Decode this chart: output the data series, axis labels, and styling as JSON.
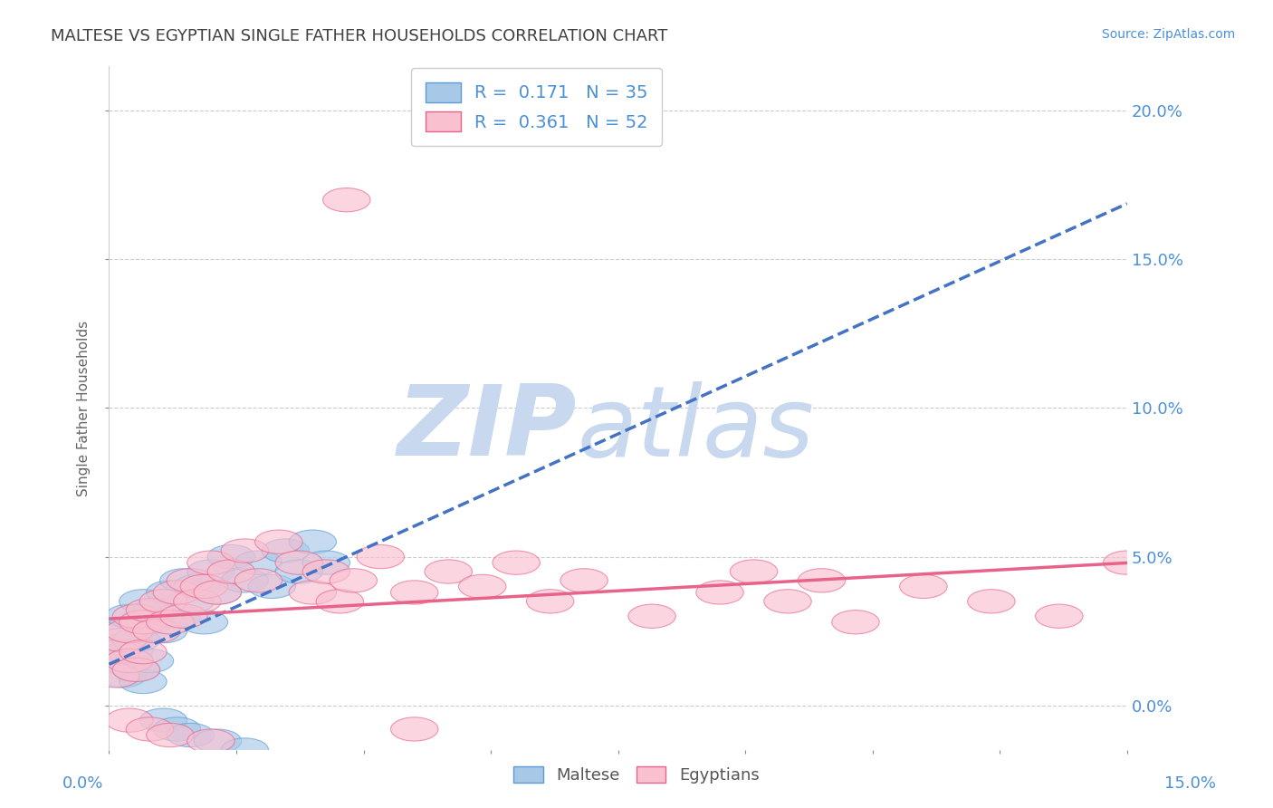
{
  "title": "MALTESE VS EGYPTIAN SINGLE FATHER HOUSEHOLDS CORRELATION CHART",
  "source_text": "Source: ZipAtlas.com",
  "ylabel": "Single Father Households",
  "ytick_values": [
    0.0,
    0.05,
    0.1,
    0.15,
    0.2
  ],
  "xlim": [
    0.0,
    0.15
  ],
  "ylim": [
    -0.015,
    0.215
  ],
  "legend_entries": [
    {
      "label": "R =  0.171   N = 35",
      "color": "#5b9bd5"
    },
    {
      "label": "R =  0.361   N = 52",
      "color": "#e8638a"
    }
  ],
  "maltese_color": "#a8c8e8",
  "maltese_edge_color": "#5b9bd5",
  "egyptian_color": "#f9c0d0",
  "egyptian_edge_color": "#e8638a",
  "maltese_line_color": "#4472c4",
  "egyptian_line_color": "#e8638a",
  "watermark_zip_color": "#c8d8ee",
  "watermark_atlas_color": "#c8d8ee",
  "background_color": "#ffffff",
  "grid_color": "#cccccc",
  "title_color": "#404040",
  "axis_label_color": "#4a90d9",
  "axis_tick_color": "#888888",
  "legend_r_color": "#4a90d9",
  "legend_n_color": "#e85090"
}
